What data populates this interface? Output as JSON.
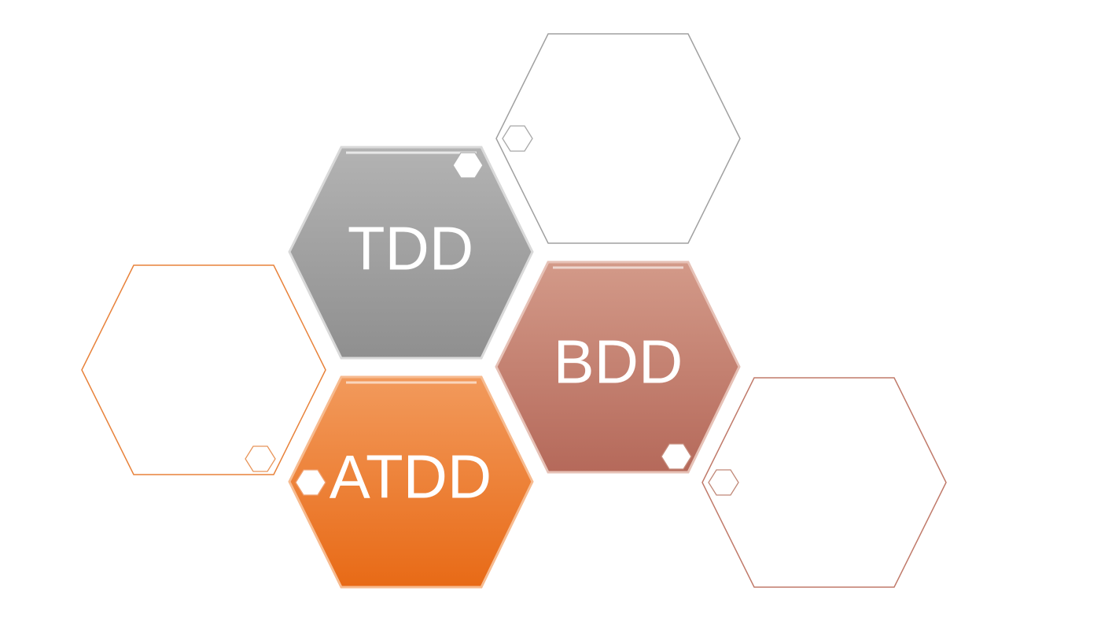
{
  "diagram": {
    "labels": {
      "tdd": "TDD",
      "bdd": "BDD",
      "atdd": "ATDD"
    },
    "colors": {
      "tdd": "#a3a3a3",
      "bdd": "#c47d6c",
      "atdd": "#ef7a2a",
      "outline_gray": "#9a9a9a",
      "outline_orange": "#e8823a",
      "outline_brown": "#c07a6a"
    }
  }
}
